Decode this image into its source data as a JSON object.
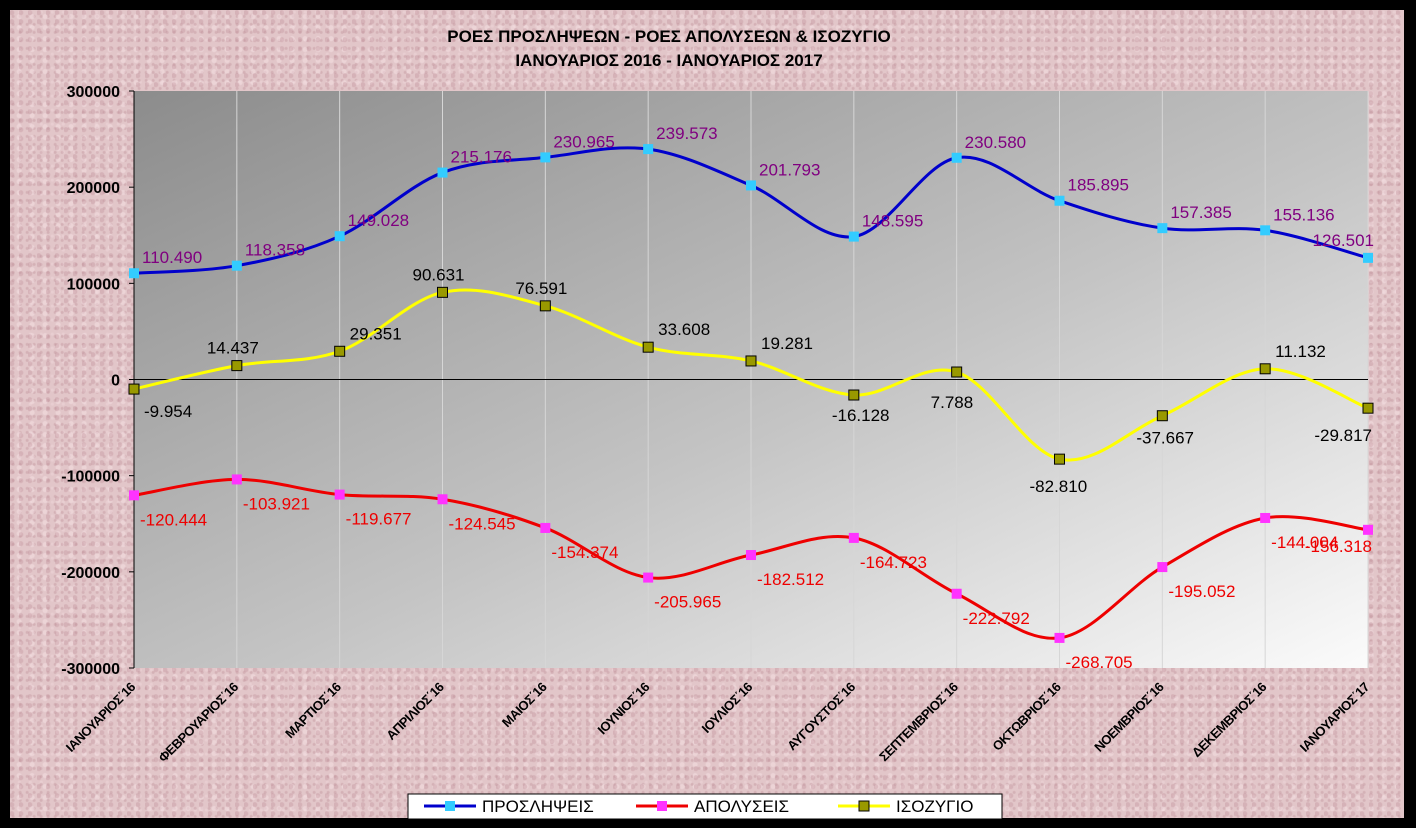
{
  "chart_data": {
    "type": "line",
    "title": "ΡΟΕΣ ΠΡΟΣΛΗΨΕΩΝ -  ΡΟΕΣ ΑΠΟΛΥΣΕΩΝ  & ΙΣΟΖΥΓΙΟ",
    "subtitle": "ΙΑΝΟΥΑΡΙΟΣ  2016   -  ΙΑΝΟΥΑΡΙΟΣ  2017",
    "xlabel": "",
    "ylabel": "",
    "ylim": [
      -300000,
      300000
    ],
    "yticks": [
      300000,
      200000,
      100000,
      0,
      -100000,
      -200000,
      -300000
    ],
    "grid": "vertical",
    "legend": "bottom",
    "categories": [
      "ΙΑΝΟΥΑΡΙΟΣ΄16",
      "ΦΕΒΡΟΥΑΡΙΟΣ΄16",
      "ΜΑΡΤΙΟΣ΄16",
      "ΑΠΡΙΛΙΟΣ΄16",
      "ΜΑΙΟΣ΄16",
      "ΙΟΥΝΙΟΣ΄16",
      "ΙΟΥΛΙΟΣ΄16",
      "ΑΥΓΟΥΣΤΟΣ΄16",
      "ΣΕΠΤΕΜΒΡΙΟΣ΄16",
      "ΟΚΤΩΒΡΙΟΣ΄16",
      "ΝΟΕΜΒΡΙΟΣ΄16",
      "ΔΕΚΕΜΒΡΙΟΣ΄16",
      "ΙΑΝΟΥΑΡΙΟΣ΄17"
    ],
    "series": [
      {
        "name": "ΠΡΟΣΛΗΨΕΙΣ",
        "line_color": "#0000cc",
        "marker_color": "#33ccff",
        "label_color": "#800080",
        "values": [
          110490,
          118358,
          149028,
          215176,
          230965,
          239573,
          201793,
          148595,
          230580,
          185895,
          157385,
          155136,
          126501
        ],
        "labels": [
          "110.490",
          "118.358",
          "149.028",
          "215.176",
          "230.965",
          "239.573",
          "201.793",
          "148.595",
          "230.580",
          "185.895",
          "157.385",
          "155.136",
          "126.501"
        ]
      },
      {
        "name": "ΑΠΟΛΥΣΕΙΣ",
        "line_color": "#ee0000",
        "marker_color": "#ff33ff",
        "label_color": "#ee0000",
        "values": [
          -120444,
          -103921,
          -119677,
          -124545,
          -154374,
          -205965,
          -182512,
          -164723,
          -222792,
          -268705,
          -195052,
          -144004,
          -156318
        ],
        "labels": [
          "-120.444",
          "-103.921",
          "-119.677",
          "-124.545",
          "-154.374",
          "-205.965",
          "-182.512",
          "-164.723",
          "-222.792",
          "-268.705",
          "-195.052",
          "-144.004",
          "-156.318"
        ]
      },
      {
        "name": "ΙΣΟΖΥΓΙΟ",
        "line_color": "#ffff00",
        "marker_color": "#999900",
        "label_color": "#000000",
        "values": [
          -9954,
          14437,
          29351,
          90631,
          76591,
          33608,
          19281,
          -16128,
          7788,
          -82810,
          -37667,
          11132,
          -29817
        ],
        "labels": [
          "-9.954",
          "14.437",
          "29.351",
          "90.631",
          "76.591",
          "33.608",
          "19.281",
          "-16.128",
          "7.788",
          "-82.810",
          "-37.667",
          "11.132",
          "-29.817"
        ]
      }
    ]
  }
}
